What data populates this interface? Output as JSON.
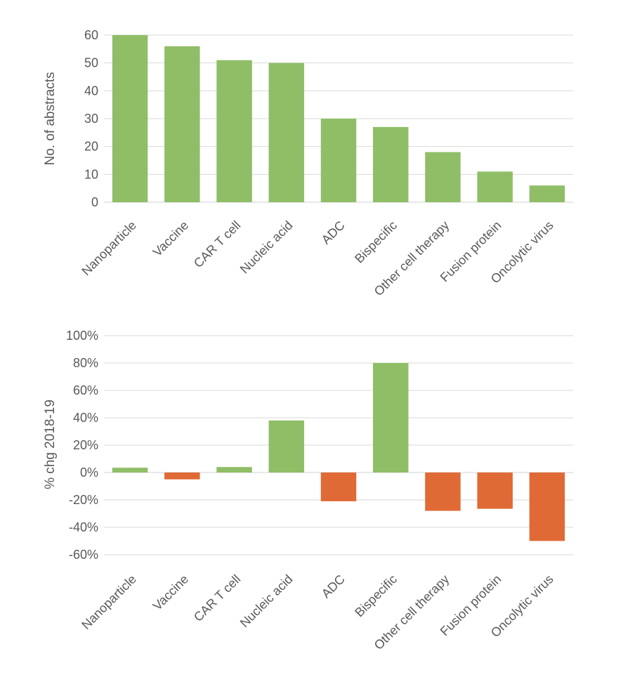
{
  "chart_data": [
    {
      "type": "bar",
      "categories": [
        "Nanoparticle",
        "Vaccine",
        "CAR T cell",
        "Nucleic acid",
        "ADC",
        "Bispecific",
        "Other cell therapy",
        "Fusion protein",
        "Oncolytic virus"
      ],
      "values": [
        60,
        56,
        51,
        50,
        30,
        27,
        18,
        11,
        6
      ],
      "title": "",
      "xlabel": "",
      "ylabel": "No. of abstracts",
      "ylim": [
        0,
        60
      ],
      "yticks": [
        "0",
        "10",
        "20",
        "30",
        "40",
        "50",
        "60"
      ],
      "grid": true,
      "colors": {
        "bar": "#8fbe67"
      }
    },
    {
      "type": "bar",
      "categories": [
        "Nanoparticle",
        "Vaccine",
        "CAR T cell",
        "Nucleic acid",
        "ADC",
        "Bispecific",
        "Other cell therapy",
        "Fusion protein",
        "Oncolytic virus"
      ],
      "values": [
        3.5,
        -5,
        4,
        38,
        -21,
        80,
        -28,
        -26.5,
        -50
      ],
      "value_unit": "percent",
      "title": "",
      "xlabel": "",
      "ylabel": "% chg 2018-19",
      "ylim": [
        -60,
        100
      ],
      "yticks": [
        "-60%",
        "-40%",
        "-20%",
        "0%",
        "20%",
        "40%",
        "60%",
        "80%",
        "100%"
      ],
      "grid": true,
      "colors": {
        "positive": "#8fbe67",
        "negative": "#e06a35"
      }
    }
  ]
}
